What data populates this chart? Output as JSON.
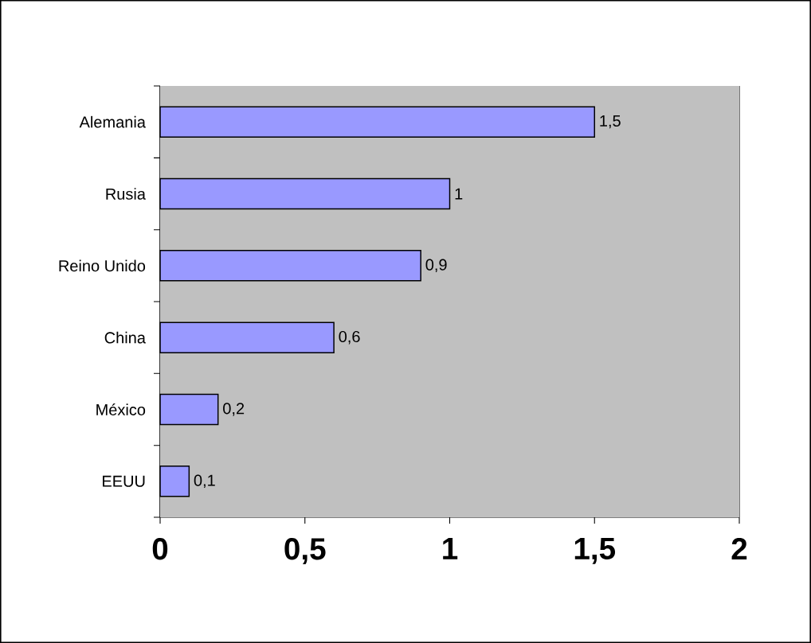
{
  "chart_data": {
    "type": "bar",
    "orientation": "horizontal",
    "categories": [
      "Alemania",
      "Rusia",
      "Reino Unido",
      "China",
      "México",
      "EEUU"
    ],
    "values": [
      1.5,
      1,
      0.9,
      0.6,
      0.2,
      0.1
    ],
    "value_labels": [
      "1,5",
      "1",
      "0,9",
      "0,6",
      "0,2",
      "0,1"
    ],
    "color": "#9999ff",
    "xlim": [
      0,
      2
    ],
    "xticks": [
      0,
      {
        "value": 0.5,
        "label": "0,5"
      },
      1,
      {
        "value": 1.5,
        "label": "1,5"
      },
      2
    ],
    "grid": "x"
  }
}
